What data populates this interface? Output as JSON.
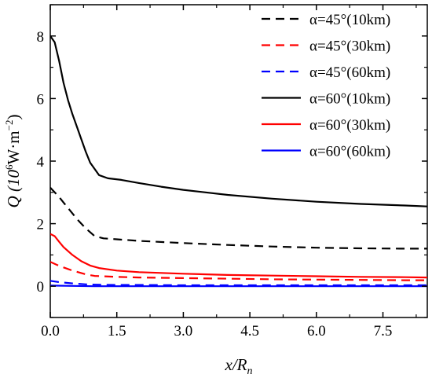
{
  "chart_data": {
    "type": "line",
    "title": "",
    "xlabel": {
      "main": "x/R",
      "sub": "n"
    },
    "ylabel": {
      "main": "Q (10",
      "sup1": "6",
      "mid": "W·m",
      "sup2": "−2",
      "end": ")"
    },
    "xlim": [
      0,
      8.5
    ],
    "ylim": [
      -1,
      9
    ],
    "x_ticks": [
      0.0,
      1.5,
      3.0,
      4.5,
      6.0,
      7.5
    ],
    "x_tick_labels": [
      "0.0",
      "1.5",
      "3.0",
      "4.5",
      "6.0",
      "7.5"
    ],
    "y_ticks": [
      0,
      2,
      4,
      6,
      8
    ],
    "y_tick_labels": [
      "0",
      "2",
      "4",
      "6",
      "8"
    ],
    "grid": false,
    "legend_position": "top-right",
    "series": [
      {
        "name": "α=45°(10km)",
        "color": "#000000",
        "dash": "dashed",
        "x": [
          0,
          0.2,
          0.4,
          0.6,
          0.8,
          1.0,
          1.2,
          1.5,
          2.0,
          3.0,
          4.0,
          5.0,
          6.0,
          7.0,
          8.0,
          8.5
        ],
        "y": [
          3.15,
          2.85,
          2.5,
          2.15,
          1.85,
          1.6,
          1.53,
          1.5,
          1.45,
          1.38,
          1.32,
          1.27,
          1.23,
          1.21,
          1.2,
          1.2
        ]
      },
      {
        "name": "α=45°(30km)",
        "color": "#ff0000",
        "dash": "dashed",
        "x": [
          0,
          0.2,
          0.5,
          0.8,
          1.0,
          1.5,
          2.0,
          3.0,
          4.0,
          5.0,
          6.0,
          7.0,
          8.0,
          8.5
        ],
        "y": [
          0.78,
          0.65,
          0.5,
          0.38,
          0.33,
          0.3,
          0.28,
          0.26,
          0.24,
          0.22,
          0.21,
          0.2,
          0.19,
          0.19
        ]
      },
      {
        "name": "α=45°(60km)",
        "color": "#0000ff",
        "dash": "dashed",
        "x": [
          0,
          0.2,
          0.5,
          0.8,
          1.0,
          1.5,
          2.0,
          3.0,
          4.0,
          5.0,
          6.0,
          7.0,
          8.0,
          8.5
        ],
        "y": [
          0.17,
          0.13,
          0.09,
          0.06,
          0.05,
          0.04,
          0.04,
          0.03,
          0.03,
          0.03,
          0.03,
          0.03,
          0.03,
          0.03
        ]
      },
      {
        "name": "α=60°(10km)",
        "color": "#000000",
        "dash": "solid",
        "x": [
          0,
          0.1,
          0.2,
          0.3,
          0.4,
          0.5,
          0.6,
          0.7,
          0.8,
          0.9,
          1.0,
          1.1,
          1.3,
          1.6,
          2.0,
          2.5,
          3.0,
          4.0,
          5.0,
          6.0,
          7.0,
          8.0,
          8.5
        ],
        "y": [
          8.0,
          7.8,
          7.2,
          6.5,
          5.95,
          5.5,
          5.1,
          4.7,
          4.3,
          3.95,
          3.75,
          3.55,
          3.45,
          3.4,
          3.3,
          3.18,
          3.08,
          2.92,
          2.8,
          2.7,
          2.63,
          2.58,
          2.55
        ]
      },
      {
        "name": "α=60°(30km)",
        "color": "#ff0000",
        "dash": "solid",
        "x": [
          0,
          0.1,
          0.2,
          0.3,
          0.5,
          0.7,
          0.9,
          1.1,
          1.5,
          2.0,
          3.0,
          4.0,
          5.0,
          6.0,
          7.0,
          8.0,
          8.5
        ],
        "y": [
          1.67,
          1.6,
          1.42,
          1.25,
          1.0,
          0.8,
          0.66,
          0.58,
          0.5,
          0.45,
          0.4,
          0.36,
          0.34,
          0.32,
          0.3,
          0.29,
          0.28
        ]
      },
      {
        "name": "α=60°(60km)",
        "color": "#0000ff",
        "dash": "solid",
        "x": [
          0,
          0.5,
          1.0,
          2.0,
          4.0,
          6.0,
          8.5
        ],
        "y": [
          0.02,
          0.01,
          0.0,
          0.0,
          0.0,
          0.0,
          0.0
        ]
      }
    ]
  }
}
